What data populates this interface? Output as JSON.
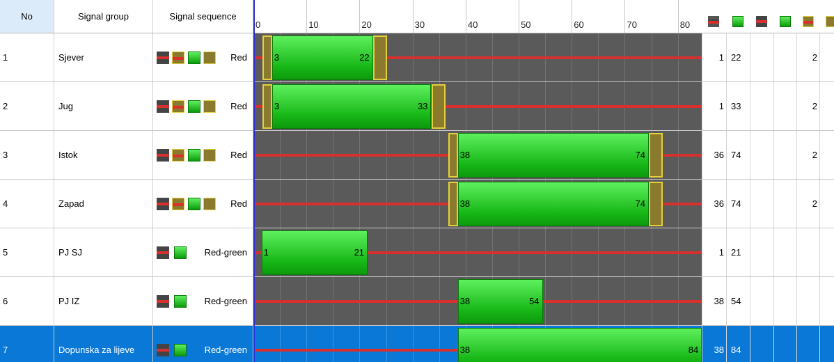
{
  "header": {
    "no": "No",
    "group": "Signal group",
    "sequence": "Signal sequence",
    "ticks": [
      "0",
      "10",
      "20",
      "30",
      "40",
      "50",
      "60",
      "70",
      "80"
    ]
  },
  "rows": [
    {
      "no": "1",
      "name": "Sjever",
      "seq": "Red",
      "start_label": "3",
      "end_label": "22",
      "c1": "1",
      "c2": "22",
      "c3": "2"
    },
    {
      "no": "2",
      "name": "Jug",
      "seq": "Red",
      "start_label": "3",
      "end_label": "33",
      "c1": "1",
      "c2": "33",
      "c3": "2"
    },
    {
      "no": "3",
      "name": "Istok",
      "seq": "Red",
      "start_label": "38",
      "end_label": "74",
      "c1": "36",
      "c2": "74",
      "c3": "2"
    },
    {
      "no": "4",
      "name": "Zapad",
      "seq": "Red",
      "start_label": "38",
      "end_label": "74",
      "c1": "36",
      "c2": "74",
      "c3": "2"
    },
    {
      "no": "5",
      "name": "PJ SJ",
      "seq": "Red-green",
      "start_label": "1",
      "end_label": "21",
      "c1": "1",
      "c2": "21",
      "c3": ""
    },
    {
      "no": "6",
      "name": "PJ IZ",
      "seq": "Red-green",
      "start_label": "38",
      "end_label": "54",
      "c1": "38",
      "c2": "54",
      "c3": ""
    },
    {
      "no": "7",
      "name": "Dopunska za lijeve",
      "seq": "Red-green",
      "start_label": "38",
      "end_label": "84",
      "c1": "38",
      "c2": "84",
      "c3": ""
    }
  ],
  "bars": [
    {
      "green_start": 3,
      "green_end": 22,
      "amber_pre": true,
      "amber_post": true
    },
    {
      "green_start": 3,
      "green_end": 33,
      "amber_pre": true,
      "amber_post": true
    },
    {
      "green_start": 38,
      "green_end": 74,
      "amber_pre": true,
      "amber_post": true
    },
    {
      "green_start": 38,
      "green_end": 74,
      "amber_pre": true,
      "amber_post": true
    },
    {
      "green_start": 1,
      "green_end": 21,
      "amber_pre": false,
      "amber_post": false
    },
    {
      "green_start": 38,
      "green_end": 54,
      "amber_pre": false,
      "amber_post": false
    },
    {
      "green_start": 38,
      "green_end": 84,
      "amber_pre": false,
      "amber_post": false
    }
  ],
  "colors": {
    "green": "#1cc41c",
    "red": "#d8302e",
    "amber": "#e5cf3a",
    "selected": "#0a78d7",
    "gantt_bg": "#5a5a5a"
  },
  "icons": [
    "red-signal-icon",
    "green-signal-icon",
    "red-signal-icon",
    "green-signal-icon",
    "red-amber-icon",
    "amber-icon"
  ]
}
